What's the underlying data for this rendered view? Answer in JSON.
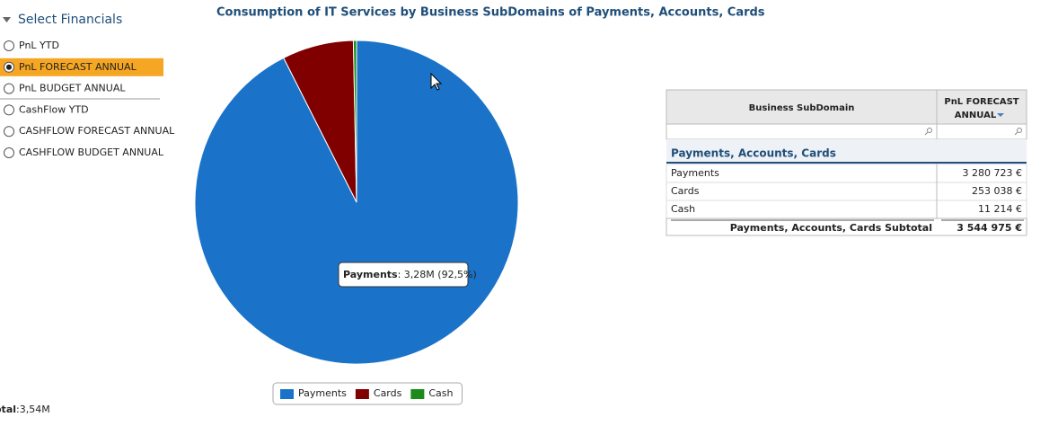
{
  "sidebar": {
    "title": "Select Financials",
    "options": [
      "PnL YTD",
      "PnL FORECAST ANNUAL",
      "PnL BUDGET ANNUAL",
      "CashFlow YTD",
      "CASHFLOW FORECAST ANNUAL",
      "CASHFLOW BUDGET ANNUAL"
    ],
    "selected": 1
  },
  "total": {
    "label": "otal",
    "value": ":3,54M"
  },
  "chart_data": {
    "type": "pie",
    "title": "Consumption of IT Services by Business SubDomains of Payments, Accounts, Cards",
    "categories": [
      "Payments",
      "Cards",
      "Cash"
    ],
    "values": [
      3280723,
      253038,
      11214
    ],
    "colors": [
      "#1a73c8",
      "#800000",
      "#1a8a1a"
    ],
    "tooltip": {
      "name": "Payments",
      "text": ": 3,28M (92,5%)"
    },
    "legend": "bottom"
  },
  "table": {
    "headers": [
      "Business SubDomain",
      "PnL FORECAST",
      "ANNUAL"
    ],
    "group": "Payments, Accounts, Cards",
    "rows": [
      [
        "Payments",
        "3 280 723 €"
      ],
      [
        "Cards",
        "253 038 €"
      ],
      [
        "Cash",
        "11 214 €"
      ]
    ],
    "subtotal": [
      "Payments, Accounts, Cards Subtotal",
      "3 544 975 €"
    ]
  }
}
